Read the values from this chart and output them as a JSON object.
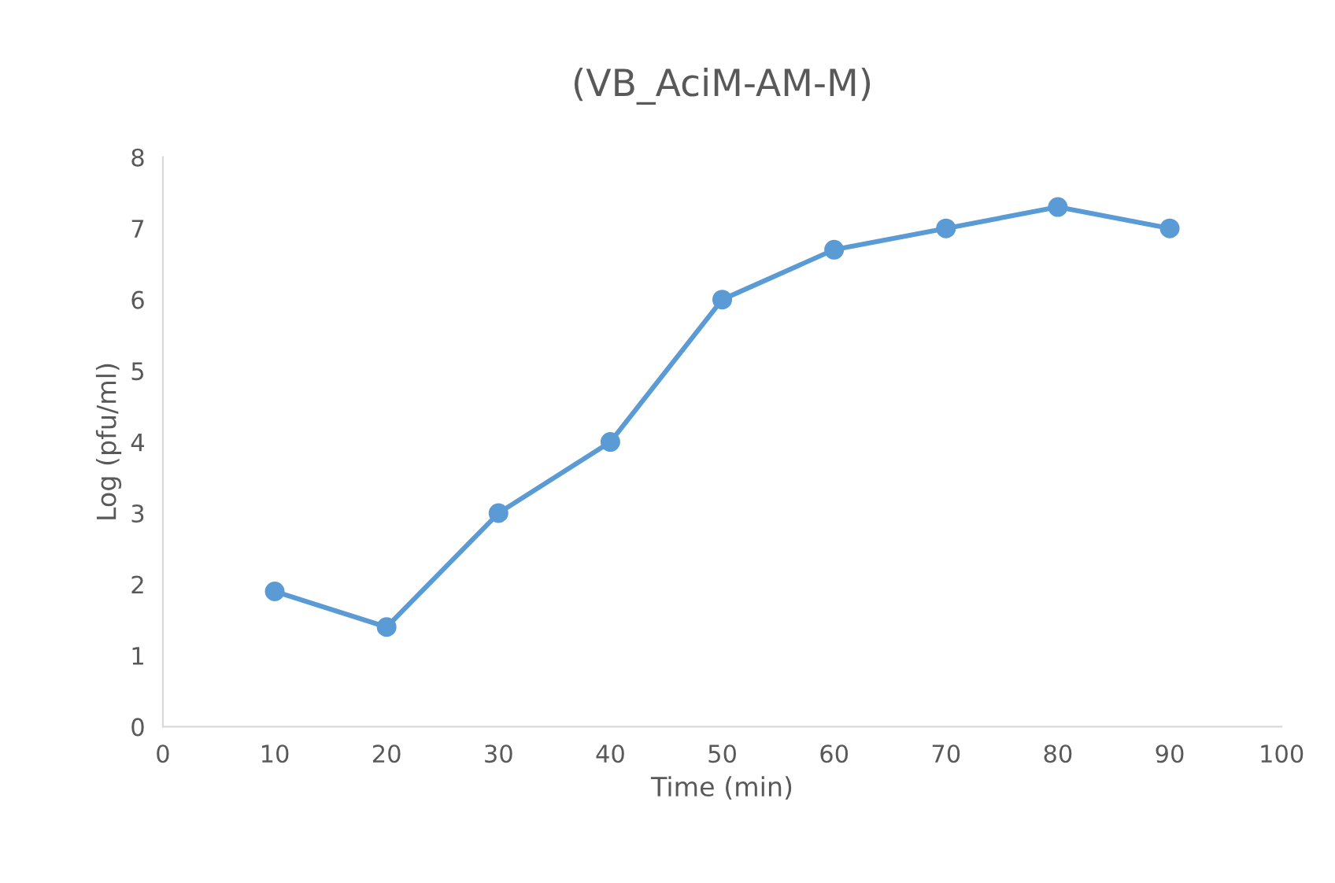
{
  "chart_data": {
    "type": "line",
    "title": "(VB_AciM-AM-M)",
    "xlabel": "Time (min)",
    "ylabel": "Log (pfu/ml)",
    "x": [
      10,
      20,
      30,
      40,
      50,
      60,
      70,
      80,
      90
    ],
    "series": [
      {
        "color": "#5b9bd5",
        "values": [
          1.9,
          1.4,
          3.0,
          4.0,
          6.0,
          6.7,
          7.0,
          7.3,
          7.0
        ]
      }
    ],
    "xlim": [
      0,
      100
    ],
    "xticks": [
      0,
      10,
      20,
      30,
      40,
      50,
      60,
      70,
      80,
      90,
      100
    ],
    "ylim": [
      0,
      8
    ],
    "yticks": [
      0,
      1,
      2,
      3,
      4,
      5,
      6,
      7,
      8
    ],
    "marker": "circle",
    "grid": false,
    "legend": false
  }
}
